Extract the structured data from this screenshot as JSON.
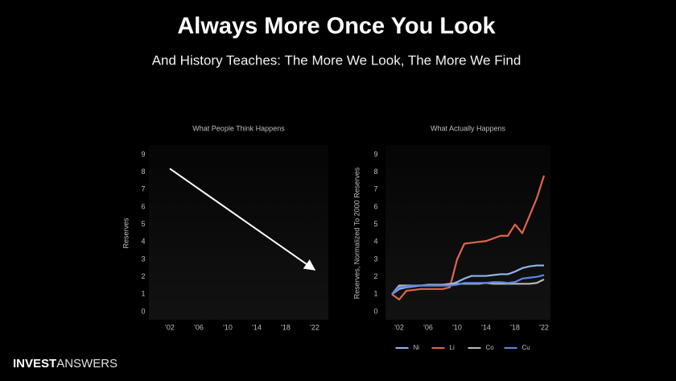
{
  "title": "Always More Once You Look",
  "subtitle": "And History Teaches: The More We Look, The More We Find",
  "chart_data": [
    {
      "type": "arrow",
      "title": "What People Think Happens",
      "ylabel": "Reserves",
      "x": [
        2,
        22
      ],
      "values": [
        8.2,
        2.4
      ],
      "color": "#ffffff",
      "xlim": [
        0,
        23
      ],
      "ylim": [
        0,
        9
      ],
      "yticks": [
        0,
        1,
        2,
        3,
        4,
        5,
        6,
        7,
        8,
        9
      ],
      "xticks": [
        {
          "value": 2,
          "label": "'02"
        },
        {
          "value": 6,
          "label": "'06"
        },
        {
          "value": 10,
          "label": "'10"
        },
        {
          "value": 14,
          "label": "'14"
        },
        {
          "value": 18,
          "label": "'18"
        },
        {
          "value": 22,
          "label": "'22"
        }
      ]
    },
    {
      "type": "line",
      "title": "What Actually Happens",
      "ylabel": "Reserves, Normalized To 2000 Reserves",
      "x": [
        1,
        2,
        3,
        4,
        5,
        6,
        7,
        8,
        9,
        10,
        11,
        12,
        13,
        14,
        15,
        16,
        17,
        18,
        19,
        20,
        21,
        22
      ],
      "series": [
        {
          "name": "Ni",
          "color": "#8fb4ea",
          "values": [
            1.0,
            1.3,
            1.4,
            1.45,
            1.5,
            1.5,
            1.5,
            1.5,
            1.55,
            1.7,
            1.9,
            2.05,
            2.05,
            2.05,
            2.1,
            2.15,
            2.15,
            2.3,
            2.5,
            2.6,
            2.65,
            2.65
          ]
        },
        {
          "name": "Li",
          "color": "#e0654a",
          "values": [
            1.0,
            0.7,
            1.2,
            1.25,
            1.3,
            1.3,
            1.3,
            1.3,
            1.4,
            3.0,
            3.9,
            3.95,
            4.0,
            4.05,
            4.2,
            4.35,
            4.35,
            5.0,
            4.5,
            5.5,
            6.5,
            7.8
          ]
        },
        {
          "name": "Co",
          "color": "#b8b8b8",
          "values": [
            1.0,
            1.5,
            1.5,
            1.5,
            1.5,
            1.55,
            1.55,
            1.55,
            1.6,
            1.6,
            1.6,
            1.6,
            1.6,
            1.65,
            1.6,
            1.6,
            1.6,
            1.6,
            1.6,
            1.6,
            1.65,
            1.85
          ]
        },
        {
          "name": "Cu",
          "color": "#5b86e0",
          "values": [
            1.0,
            1.4,
            1.45,
            1.5,
            1.5,
            1.5,
            1.5,
            1.5,
            1.5,
            1.55,
            1.65,
            1.65,
            1.65,
            1.65,
            1.7,
            1.7,
            1.65,
            1.7,
            1.9,
            1.95,
            2.0,
            2.1
          ]
        }
      ],
      "xlim": [
        1,
        22
      ],
      "ylim": [
        0,
        9
      ],
      "yticks": [
        0,
        1,
        2,
        3,
        4,
        5,
        6,
        7,
        8,
        9
      ],
      "xticks": [
        {
          "value": 2,
          "label": "'02"
        },
        {
          "value": 6,
          "label": "'06"
        },
        {
          "value": 10,
          "label": "'10"
        },
        {
          "value": 14,
          "label": "'14"
        },
        {
          "value": 18,
          "label": "'18"
        },
        {
          "value": 22,
          "label": "'22"
        }
      ],
      "legend": "bottom"
    }
  ],
  "footer": {
    "brand_bold": "INVEST",
    "brand_light": "ANSWERS"
  }
}
